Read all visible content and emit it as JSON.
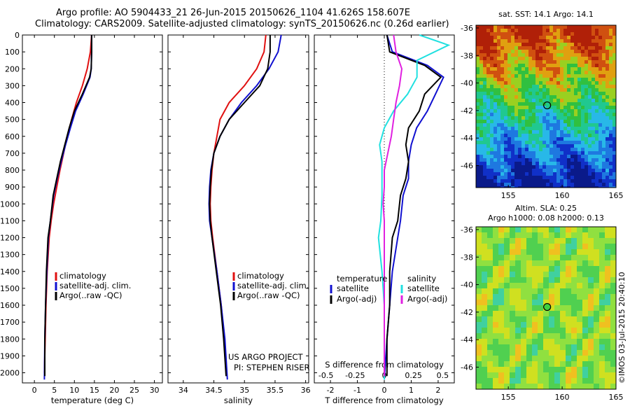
{
  "header": {
    "line1": "Argo profile: AO 5904433_21 26-Jun-2015 20150626_1104 41.626S 158.607E",
    "line2": "Climatology: CARS2009. Satellite-adjusted climatology: synTS_20150626.nc (0.26d earlier)"
  },
  "credit": {
    "line1": "US ARGO PROJECT",
    "line2": "PI: STEPHEN RISER"
  },
  "watermark": "©IMOS 03-Jul-2015 20:40:10",
  "colors": {
    "red": "#e01010",
    "blue": "#1010d0",
    "black": "#000000",
    "cyan": "#20e0e0",
    "magenta": "#e020e0"
  },
  "chart_data": [
    {
      "type": "line",
      "panel": "temperature",
      "xlabel": "temperature (deg C)",
      "xlim": [
        -3,
        32
      ],
      "xticks": [
        0,
        5,
        10,
        15,
        20,
        25,
        30
      ],
      "ylim": [
        2060,
        0
      ],
      "yticks": [
        0,
        100,
        200,
        300,
        400,
        500,
        600,
        700,
        800,
        900,
        1000,
        1100,
        1200,
        1300,
        1400,
        1500,
        1600,
        1700,
        1800,
        1900,
        2000
      ],
      "legend": [
        "climatology",
        "satellite-adj. clim.",
        "Argo(..raw -QC)"
      ],
      "series": [
        {
          "name": "climatology",
          "color": "red",
          "x": [
            14.3,
            14.0,
            13.2,
            12.0,
            10.5,
            9.3,
            8.2,
            7.3,
            6.4,
            5.6,
            4.8,
            4.2,
            3.7,
            3.2,
            2.9,
            2.7,
            2.5
          ],
          "y": [
            0,
            100,
            200,
            300,
            400,
            500,
            600,
            700,
            800,
            900,
            1000,
            1100,
            1200,
            1400,
            1600,
            1800,
            2000
          ]
        },
        {
          "name": "satellite-adj. clim.",
          "color": "blue",
          "x": [
            14.3,
            14.3,
            14.2,
            13.9,
            12.2,
            10.3,
            9.0,
            7.8,
            6.7,
            5.7,
            4.8,
            4.0,
            3.5,
            3.1,
            2.8,
            2.6,
            2.5
          ],
          "y": [
            0,
            100,
            200,
            250,
            350,
            450,
            550,
            650,
            750,
            850,
            950,
            1100,
            1200,
            1400,
            1600,
            1800,
            2040
          ]
        },
        {
          "name": "Argo(..raw -QC)",
          "color": "black",
          "x": [
            14.3,
            14.3,
            14.2,
            13.8,
            12.0,
            10.0,
            8.7,
            7.6,
            6.5,
            5.6,
            4.7,
            4.0,
            3.4,
            3.0,
            2.8,
            2.6,
            2.6
          ],
          "y": [
            0,
            100,
            200,
            250,
            350,
            450,
            550,
            650,
            750,
            850,
            950,
            1100,
            1200,
            1400,
            1600,
            1800,
            2020
          ]
        }
      ]
    },
    {
      "type": "line",
      "panel": "salinity",
      "xlabel": "salinity",
      "xlim": [
        33.75,
        36.05
      ],
      "xticks": [
        34,
        34.5,
        35,
        35.5,
        36
      ],
      "ylim": [
        2060,
        0
      ],
      "legend": [
        "climatology",
        "satellite-adj. clim.",
        "Argo(..raw -QC)"
      ],
      "series": [
        {
          "name": "climatology",
          "color": "red",
          "x": [
            35.35,
            35.32,
            35.2,
            35.0,
            34.75,
            34.6,
            34.55,
            34.5,
            34.47,
            34.45,
            34.44,
            34.45,
            34.48,
            34.55,
            34.62,
            34.67,
            34.7
          ],
          "y": [
            0,
            100,
            200,
            300,
            400,
            500,
            600,
            700,
            800,
            900,
            1000,
            1100,
            1200,
            1400,
            1600,
            1800,
            2000
          ]
        },
        {
          "name": "satellite-adj. clim.",
          "color": "blue",
          "x": [
            35.6,
            35.55,
            35.4,
            35.2,
            34.95,
            34.75,
            34.6,
            34.5,
            34.45,
            34.43,
            34.42,
            34.43,
            34.47,
            34.55,
            34.62,
            34.68,
            34.72
          ],
          "y": [
            0,
            100,
            200,
            300,
            400,
            500,
            600,
            700,
            800,
            900,
            1000,
            1100,
            1200,
            1400,
            1600,
            1800,
            2040
          ]
        },
        {
          "name": "Argo(..raw -QC)",
          "color": "black",
          "x": [
            35.42,
            35.42,
            35.38,
            35.25,
            35.0,
            34.75,
            34.6,
            34.5,
            34.46,
            34.44,
            34.43,
            34.44,
            34.47,
            34.54,
            34.61,
            34.66,
            34.7
          ],
          "y": [
            0,
            100,
            200,
            300,
            400,
            500,
            600,
            700,
            800,
            900,
            1000,
            1100,
            1200,
            1400,
            1600,
            1800,
            2020
          ]
        }
      ]
    },
    {
      "type": "line",
      "panel": "difference",
      "xlabel": "T difference from climatology",
      "xlabel_top": "S difference from climatology",
      "xlim": [
        -2.6,
        2.6
      ],
      "xticks": [
        -2,
        -1,
        0,
        1,
        2
      ],
      "xticks_top": [
        -0.5,
        -0.25,
        0,
        0.25,
        0.5
      ],
      "ylim": [
        2060,
        0
      ],
      "legend_left": {
        "title": "temperature",
        "items": [
          "satellite",
          "Argo(-adj)"
        ]
      },
      "legend_right": {
        "title": "salinity",
        "items": [
          "satellite",
          "Argo(-adj)"
        ]
      },
      "series": [
        {
          "name": "satellite",
          "group": "temperature",
          "color": "blue",
          "x": [
            0.1,
            0.3,
            1.6,
            2.2,
            1.9,
            1.6,
            1.2,
            1.0,
            0.9,
            0.9,
            0.7,
            0.6,
            0.5,
            0.3,
            0.2,
            0.1,
            0.0
          ],
          "y": [
            0,
            100,
            180,
            250,
            350,
            450,
            550,
            650,
            750,
            850,
            950,
            1100,
            1200,
            1400,
            1600,
            1800,
            2040
          ]
        },
        {
          "name": "Argo(-adj)",
          "group": "temperature",
          "color": "black",
          "x": [
            0.1,
            0.2,
            1.5,
            2.1,
            1.5,
            1.3,
            0.9,
            0.8,
            0.9,
            0.8,
            0.6,
            0.5,
            0.3,
            0.2,
            0.2,
            0.1,
            0.1
          ],
          "y": [
            0,
            100,
            180,
            250,
            350,
            450,
            550,
            650,
            750,
            850,
            950,
            1100,
            1200,
            1400,
            1600,
            1800,
            2020
          ]
        },
        {
          "name": "satellite",
          "group": "salinity",
          "color": "cyan",
          "x": [
            0.3,
            0.55,
            0.28,
            0.28,
            0.2,
            0.08,
            0.0,
            -0.04,
            -0.02,
            -0.02,
            -0.02,
            -0.03,
            -0.05,
            -0.02,
            0.0,
            0.0,
            0.0
          ],
          "y": [
            0,
            60,
            150,
            250,
            350,
            450,
            550,
            650,
            750,
            850,
            950,
            1100,
            1200,
            1400,
            1600,
            1800,
            2040
          ]
        },
        {
          "name": "Argo(-adj)",
          "group": "salinity",
          "color": "magenta",
          "x": [
            0.08,
            0.1,
            0.15,
            0.13,
            0.1,
            0.08,
            0.06,
            0.03,
            0.0,
            0.0,
            -0.01,
            0.0,
            0.0,
            0.0,
            0.0,
            0.0,
            0.0
          ],
          "y": [
            0,
            100,
            200,
            300,
            400,
            500,
            600,
            700,
            800,
            900,
            1000,
            1100,
            1200,
            1400,
            1600,
            1800,
            2020
          ]
        }
      ]
    },
    {
      "type": "heatmap",
      "panel": "sst_map",
      "title": "sat. SST: 14.1  Argo: 14.1",
      "xlim": [
        152,
        165
      ],
      "ylim": [
        -47.6,
        -35.8
      ],
      "xticks": [
        155,
        160,
        165
      ],
      "yticks": [
        -36,
        -38,
        -40,
        -42,
        -44,
        -46
      ],
      "argo_position": {
        "lon": 158.607,
        "lat": -41.626
      }
    },
    {
      "type": "heatmap",
      "panel": "sla_map",
      "title_line1": "Altim. SLA: 0.25",
      "title_line2": "Argo h1000: 0.08  h2000: 0.13",
      "xlim": [
        152,
        165
      ],
      "ylim": [
        -47.6,
        -35.8
      ],
      "xticks": [
        155,
        160,
        165
      ],
      "yticks": [
        -36,
        -38,
        -40,
        -42,
        -44,
        -46
      ],
      "argo_position": {
        "lon": 158.607,
        "lat": -41.626
      }
    }
  ]
}
